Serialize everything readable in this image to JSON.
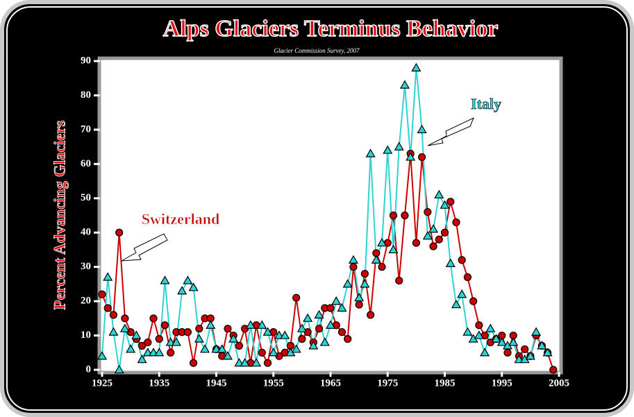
{
  "chart_data": {
    "type": "line",
    "title": "Alps Glaciers Terminus Behavior",
    "subtitle": "Glacier Commission Survey, 2007",
    "y_label": "Percent Advancing Glaciers",
    "annotations": [
      "Switzerland",
      "Italy"
    ],
    "x": [
      1925,
      1926,
      1927,
      1928,
      1929,
      1930,
      1931,
      1932,
      1933,
      1934,
      1935,
      1936,
      1937,
      1938,
      1939,
      1940,
      1941,
      1942,
      1943,
      1944,
      1945,
      1946,
      1947,
      1948,
      1949,
      1950,
      1951,
      1952,
      1953,
      1954,
      1955,
      1956,
      1957,
      1958,
      1959,
      1960,
      1961,
      1962,
      1963,
      1964,
      1965,
      1966,
      1967,
      1968,
      1969,
      1970,
      1971,
      1972,
      1973,
      1974,
      1975,
      1976,
      1977,
      1978,
      1979,
      1980,
      1981,
      1982,
      1983,
      1984,
      1985,
      1986,
      1987,
      1988,
      1989,
      1990,
      1991,
      1992,
      1993,
      1994,
      1995,
      1996,
      1997,
      1998,
      1999,
      2000,
      2001,
      2002,
      2003,
      2004
    ],
    "series": [
      {
        "name": "Switzerland",
        "color": "#cc0000",
        "marker": "circle",
        "values": [
          22,
          18,
          16,
          40,
          15,
          11,
          9,
          7,
          8,
          15,
          9,
          13,
          5,
          11,
          11,
          11,
          2,
          12,
          15,
          15,
          6,
          4,
          12,
          10,
          7,
          12,
          2,
          13,
          5,
          2,
          11,
          4,
          5,
          7,
          21,
          9,
          11,
          8,
          12,
          18,
          18,
          13,
          11,
          9,
          30,
          19,
          28,
          16,
          34,
          30,
          37,
          45,
          26,
          45,
          63,
          37,
          62,
          46,
          36,
          38,
          40,
          49,
          43,
          32,
          27,
          20,
          13,
          10,
          8,
          9,
          10,
          5,
          10,
          4,
          6,
          4,
          10,
          7,
          5,
          0
        ]
      },
      {
        "name": "Italy",
        "color": "#2ed3d3",
        "marker": "triangle",
        "values": [
          4,
          27,
          11,
          0,
          12,
          6,
          10,
          3,
          5,
          5,
          5,
          26,
          8,
          8,
          23,
          26,
          24,
          9,
          6,
          13,
          6,
          6,
          4,
          9,
          2,
          2,
          13,
          2,
          13,
          11,
          5,
          10,
          10,
          5,
          6,
          12,
          15,
          7,
          16,
          8,
          13,
          20,
          18,
          25,
          32,
          21,
          25,
          63,
          32,
          37,
          64,
          35,
          65,
          83,
          62,
          88,
          70,
          39,
          41,
          51,
          48,
          31,
          19,
          22,
          11,
          9,
          10,
          5,
          12,
          9,
          8,
          7,
          8,
          3,
          3,
          4,
          11,
          7,
          5,
          null
        ]
      }
    ],
    "xlim": [
      1925,
      2005
    ],
    "xticks": [
      1925,
      1935,
      1945,
      1955,
      1965,
      1975,
      1985,
      1995,
      2005
    ],
    "ylim": [
      0,
      90
    ],
    "yticks": [
      0,
      10,
      20,
      30,
      40,
      50,
      60,
      70,
      80,
      90
    ]
  }
}
